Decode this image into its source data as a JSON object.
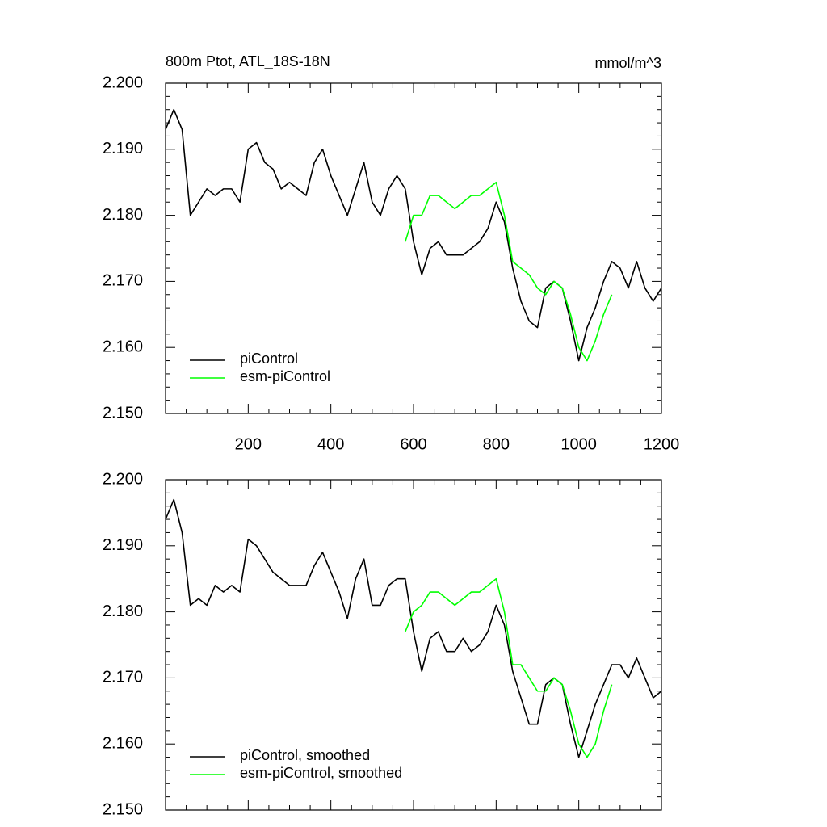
{
  "chart_data": [
    {
      "type": "line",
      "title": "800m Ptot, ATL_18S-18N",
      "units_label": "mmol/m^3",
      "x": [
        0,
        20,
        40,
        60,
        80,
        100,
        120,
        140,
        160,
        180,
        200,
        220,
        240,
        260,
        280,
        300,
        320,
        340,
        360,
        380,
        400,
        420,
        440,
        460,
        480,
        500,
        520,
        540,
        560,
        580,
        600,
        620,
        640,
        660,
        680,
        700,
        720,
        740,
        760,
        780,
        800,
        820,
        840,
        860,
        880,
        900,
        920,
        940,
        960,
        980,
        1000,
        1020,
        1040,
        1060,
        1080,
        1100,
        1120,
        1140,
        1160,
        1180,
        1200
      ],
      "series": [
        {
          "name": "piControl",
          "color": "#000000",
          "values": [
            2.193,
            2.196,
            2.193,
            2.18,
            2.182,
            2.184,
            2.183,
            2.184,
            2.184,
            2.182,
            2.19,
            2.191,
            2.188,
            2.187,
            2.184,
            2.185,
            2.184,
            2.183,
            2.188,
            2.19,
            2.186,
            2.183,
            2.18,
            2.184,
            2.188,
            2.182,
            2.18,
            2.184,
            2.186,
            2.184,
            2.176,
            2.171,
            2.175,
            2.176,
            2.174,
            2.174,
            2.174,
            2.175,
            2.176,
            2.178,
            2.182,
            2.179,
            2.172,
            2.167,
            2.164,
            2.163,
            2.169,
            2.17,
            2.169,
            2.164,
            2.158,
            2.163,
            2.166,
            2.17,
            2.173,
            2.172,
            2.169,
            2.173,
            2.169,
            2.167,
            2.169
          ]
        },
        {
          "name": "esm-piControl",
          "color": "#00ff00",
          "values": [
            null,
            null,
            null,
            null,
            null,
            null,
            null,
            null,
            null,
            null,
            null,
            null,
            null,
            null,
            null,
            null,
            null,
            null,
            null,
            null,
            null,
            null,
            null,
            null,
            null,
            null,
            null,
            null,
            null,
            2.176,
            2.18,
            2.18,
            2.183,
            2.183,
            2.182,
            2.181,
            2.182,
            2.183,
            2.183,
            2.184,
            2.185,
            2.18,
            2.173,
            2.172,
            2.171,
            2.169,
            2.168,
            2.17,
            2.169,
            2.165,
            2.16,
            2.158,
            2.161,
            2.165,
            2.168,
            null,
            null,
            null,
            null,
            null,
            null
          ]
        }
      ],
      "xlim": [
        0,
        1200
      ],
      "xticks": [
        200,
        400,
        600,
        800,
        1000,
        1200
      ],
      "xtick_labels": true,
      "ylim": [
        2.15,
        2.2
      ],
      "yticks": [
        {
          "value": 2.15,
          "label": "2.150"
        },
        {
          "value": 2.16,
          "label": "2.160"
        },
        {
          "value": 2.17,
          "label": "2.170"
        },
        {
          "value": 2.18,
          "label": "2.180"
        },
        {
          "value": 2.19,
          "label": "2.190"
        },
        {
          "value": 2.2,
          "label": "2.200"
        }
      ],
      "legend": "lower left"
    },
    {
      "type": "line",
      "x": [
        0,
        20,
        40,
        60,
        80,
        100,
        120,
        140,
        160,
        180,
        200,
        220,
        240,
        260,
        280,
        300,
        320,
        340,
        360,
        380,
        400,
        420,
        440,
        460,
        480,
        500,
        520,
        540,
        560,
        580,
        600,
        620,
        640,
        660,
        680,
        700,
        720,
        740,
        760,
        780,
        800,
        820,
        840,
        860,
        880,
        900,
        920,
        940,
        960,
        980,
        1000,
        1020,
        1040,
        1060,
        1080,
        1100,
        1120,
        1140,
        1160,
        1180,
        1200
      ],
      "series": [
        {
          "name": "piControl, smoothed",
          "color": "#000000",
          "values": [
            2.194,
            2.197,
            2.192,
            2.181,
            2.182,
            2.181,
            2.184,
            2.183,
            2.184,
            2.183,
            2.191,
            2.19,
            2.188,
            2.186,
            2.185,
            2.184,
            2.184,
            2.184,
            2.187,
            2.189,
            2.186,
            2.183,
            2.179,
            2.185,
            2.188,
            2.181,
            2.181,
            2.184,
            2.185,
            2.185,
            2.177,
            2.171,
            2.176,
            2.177,
            2.174,
            2.174,
            2.176,
            2.174,
            2.175,
            2.177,
            2.181,
            2.178,
            2.171,
            2.167,
            2.163,
            2.163,
            2.169,
            2.17,
            2.169,
            2.163,
            2.158,
            2.162,
            2.166,
            2.169,
            2.172,
            2.172,
            2.17,
            2.173,
            2.17,
            2.167,
            2.168
          ]
        },
        {
          "name": "esm-piControl, smoothed",
          "color": "#00ff00",
          "values": [
            null,
            null,
            null,
            null,
            null,
            null,
            null,
            null,
            null,
            null,
            null,
            null,
            null,
            null,
            null,
            null,
            null,
            null,
            null,
            null,
            null,
            null,
            null,
            null,
            null,
            null,
            null,
            null,
            null,
            2.177,
            2.18,
            2.181,
            2.183,
            2.183,
            2.182,
            2.181,
            2.182,
            2.183,
            2.183,
            2.184,
            2.185,
            2.18,
            2.172,
            2.172,
            2.17,
            2.168,
            2.168,
            2.17,
            2.169,
            2.165,
            2.16,
            2.158,
            2.16,
            2.165,
            2.169,
            null,
            null,
            null,
            null,
            null,
            null
          ]
        }
      ],
      "xlim": [
        0,
        1200
      ],
      "xticks": [
        200,
        400,
        600,
        800,
        1000,
        1200
      ],
      "xtick_labels": false,
      "ylim": [
        2.15,
        2.2
      ],
      "yticks": [
        {
          "value": 2.15,
          "label": "2.150"
        },
        {
          "value": 2.16,
          "label": "2.160"
        },
        {
          "value": 2.17,
          "label": "2.170"
        },
        {
          "value": 2.18,
          "label": "2.180"
        },
        {
          "value": 2.19,
          "label": "2.190"
        },
        {
          "value": 2.2,
          "label": "2.200"
        }
      ],
      "legend": "lower left"
    }
  ]
}
